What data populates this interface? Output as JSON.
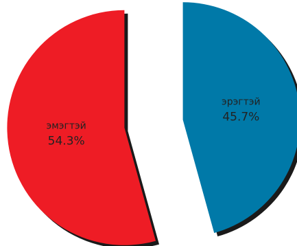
{
  "chart_data": {
    "type": "pie",
    "title": "",
    "slices": [
      {
        "label": "эрэгтэй",
        "value": 45.7,
        "display": "45.7%",
        "color": "#0079a8"
      },
      {
        "label": "эмэгтэй",
        "value": 54.3,
        "display": "54.3%",
        "color": "#ee1c25"
      }
    ],
    "exploded": true,
    "shadow": true
  }
}
